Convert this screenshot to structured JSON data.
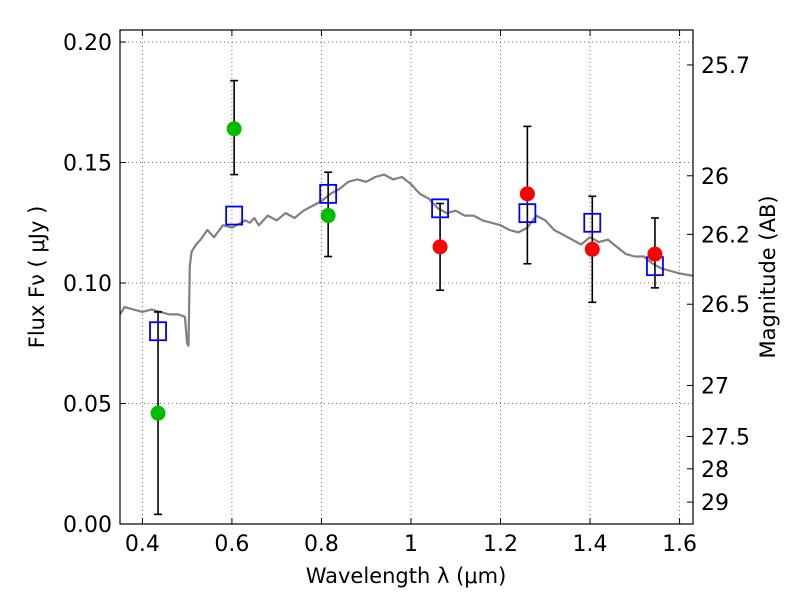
{
  "chart_data": {
    "type": "scatter",
    "xlabel": "Wavelength  λ (μm)",
    "ylabel": "Flux  Fν  ( μJy )",
    "y2label": "Magnitude (AB)",
    "xlim": [
      0.35,
      1.63
    ],
    "ylim": [
      0.0,
      0.205
    ],
    "grid": true,
    "x_ticks": [
      {
        "value": 0.4,
        "label": "0.4"
      },
      {
        "value": 0.6,
        "label": "0.6"
      },
      {
        "value": 0.8,
        "label": "0.8"
      },
      {
        "value": 1.0,
        "label": "1"
      },
      {
        "value": 1.2,
        "label": "1.2"
      },
      {
        "value": 1.4,
        "label": "1.4"
      },
      {
        "value": 1.6,
        "label": "1.6"
      }
    ],
    "y_ticks": [
      {
        "value": 0.0,
        "label": "0.00"
      },
      {
        "value": 0.05,
        "label": "0.05"
      },
      {
        "value": 0.1,
        "label": "0.10"
      },
      {
        "value": 0.15,
        "label": "0.15"
      },
      {
        "value": 0.2,
        "label": "0.20"
      }
    ],
    "y2_ticks": [
      {
        "flux": 0.1905,
        "label": "25.7"
      },
      {
        "flux": 0.1445,
        "label": "26"
      },
      {
        "flux": 0.1202,
        "label": "26.2"
      },
      {
        "flux": 0.0912,
        "label": "26.5"
      },
      {
        "flux": 0.0575,
        "label": "27"
      },
      {
        "flux": 0.0363,
        "label": "27.5"
      },
      {
        "flux": 0.0229,
        "label": "28"
      },
      {
        "flux": 0.0091,
        "label": "29"
      }
    ],
    "colors": {
      "model_line": "#808080",
      "green_points": "#00bb00",
      "red_points": "#ff0000",
      "model_boxes": "#0000ff",
      "error_bars": "#000000",
      "grid": "#555555"
    },
    "series": [
      {
        "kind": "model-spectrum",
        "x": [
          0.35,
          0.36,
          0.38,
          0.4,
          0.42,
          0.44,
          0.46,
          0.48,
          0.495,
          0.5,
          0.503,
          0.506,
          0.51,
          0.52,
          0.53,
          0.545,
          0.55,
          0.56,
          0.58,
          0.6,
          0.62,
          0.63,
          0.64,
          0.65,
          0.66,
          0.67,
          0.68,
          0.7,
          0.72,
          0.74,
          0.76,
          0.78,
          0.8,
          0.82,
          0.84,
          0.86,
          0.88,
          0.9,
          0.92,
          0.94,
          0.96,
          0.98,
          1.0,
          1.02,
          1.04,
          1.06,
          1.08,
          1.1,
          1.12,
          1.14,
          1.16,
          1.18,
          1.2,
          1.22,
          1.24,
          1.26,
          1.28,
          1.3,
          1.32,
          1.34,
          1.36,
          1.38,
          1.4,
          1.42,
          1.44,
          1.46,
          1.48,
          1.5,
          1.52,
          1.54,
          1.56,
          1.58,
          1.6,
          1.63
        ],
        "y": [
          0.087,
          0.09,
          0.089,
          0.088,
          0.089,
          0.088,
          0.087,
          0.087,
          0.086,
          0.075,
          0.074,
          0.107,
          0.113,
          0.116,
          0.118,
          0.122,
          0.121,
          0.119,
          0.124,
          0.123,
          0.125,
          0.126,
          0.125,
          0.127,
          0.124,
          0.126,
          0.128,
          0.126,
          0.129,
          0.127,
          0.13,
          0.132,
          0.134,
          0.137,
          0.139,
          0.142,
          0.143,
          0.142,
          0.144,
          0.145,
          0.143,
          0.144,
          0.141,
          0.137,
          0.135,
          0.131,
          0.129,
          0.13,
          0.128,
          0.128,
          0.126,
          0.125,
          0.124,
          0.122,
          0.121,
          0.123,
          0.128,
          0.126,
          0.122,
          0.12,
          0.118,
          0.116,
          0.119,
          0.117,
          0.118,
          0.115,
          0.112,
          0.111,
          0.111,
          0.108,
          0.106,
          0.105,
          0.104,
          0.103
        ]
      },
      {
        "kind": "model-boxes",
        "x": [
          0.435,
          0.605,
          0.815,
          1.065,
          1.26,
          1.405,
          1.545
        ],
        "y": [
          0.08,
          0.128,
          0.137,
          0.131,
          0.129,
          0.125,
          0.107
        ]
      },
      {
        "kind": "green-photometry",
        "x": [
          0.435,
          0.605,
          0.815
        ],
        "y": [
          0.046,
          0.164,
          0.128
        ],
        "yerr_low": [
          0.004,
          0.145,
          0.111
        ],
        "yerr_high": [
          0.088,
          0.184,
          0.146
        ]
      },
      {
        "kind": "red-photometry",
        "x": [
          1.065,
          1.26,
          1.405,
          1.545
        ],
        "y": [
          0.115,
          0.137,
          0.114,
          0.112
        ],
        "yerr_low": [
          0.097,
          0.108,
          0.092,
          0.098
        ],
        "yerr_high": [
          0.133,
          0.165,
          0.136,
          0.127
        ]
      }
    ]
  }
}
